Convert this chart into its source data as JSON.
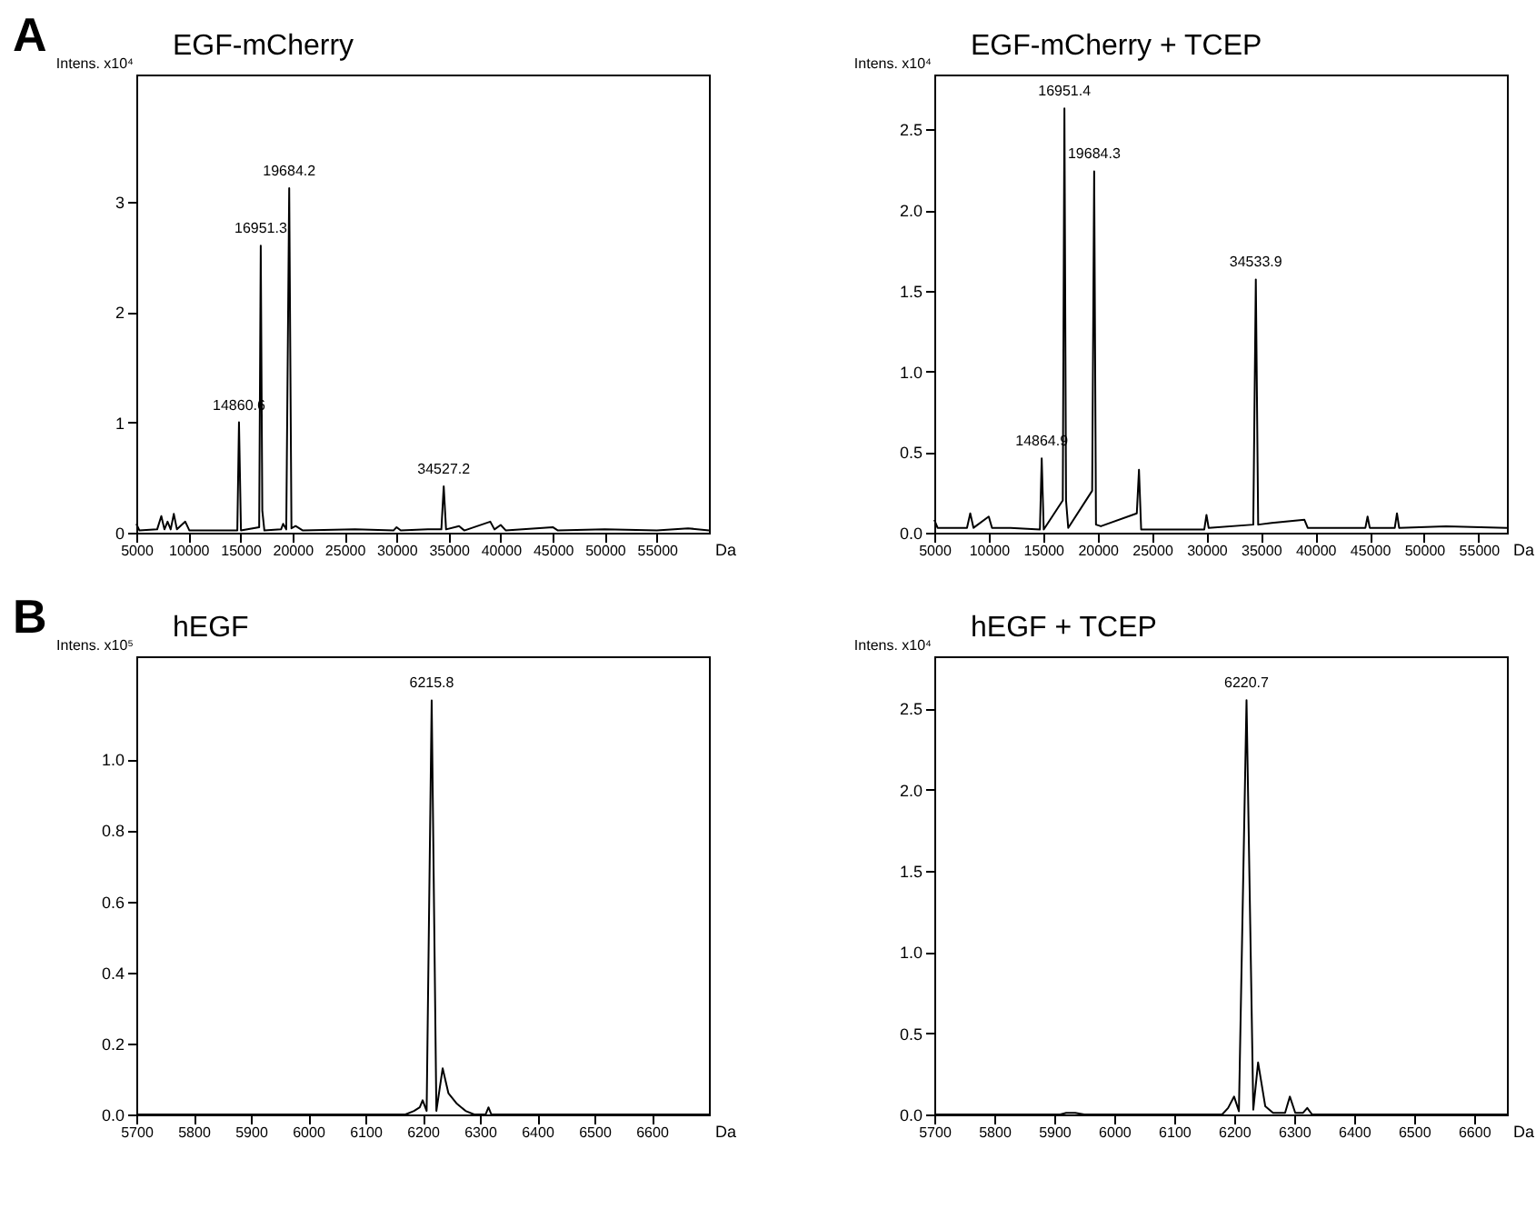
{
  "chart_data": [
    {
      "type": "line",
      "title": "EGF-mCherry",
      "ylabel": "Intens. x10⁴",
      "xlabel": "Da",
      "xlim": [
        5000,
        60000
      ],
      "xticks": [
        5000,
        10000,
        15000,
        20000,
        25000,
        30000,
        35000,
        40000,
        45000,
        50000,
        55000
      ],
      "ylim": [
        0,
        4.15
      ],
      "yticks": [
        0,
        1,
        2,
        3
      ],
      "x": [
        5000,
        5300,
        7000,
        7400,
        7700,
        8000,
        8300,
        8600,
        8900,
        9700,
        10100,
        12000,
        14700,
        14860.6,
        15050,
        16800,
        16951.3,
        17100,
        17300,
        18900,
        19100,
        19400,
        19684.2,
        19900,
        20300,
        21000,
        26000,
        29700,
        30000,
        30400,
        33000,
        34300,
        34527.2,
        34750,
        36000,
        36500,
        39000,
        39400,
        40000,
        40500,
        45000,
        45500,
        50000,
        55000,
        58000,
        60000
      ],
      "series": [
        {
          "color": "#000000",
          "values": [
            0.08,
            0.02,
            0.03,
            0.15,
            0.03,
            0.1,
            0.03,
            0.17,
            0.03,
            0.1,
            0.02,
            0.02,
            0.02,
            1.0,
            0.02,
            0.05,
            2.6,
            0.2,
            0.02,
            0.03,
            0.08,
            0.03,
            3.12,
            0.04,
            0.06,
            0.02,
            0.03,
            0.02,
            0.05,
            0.02,
            0.03,
            0.03,
            0.42,
            0.03,
            0.06,
            0.02,
            0.1,
            0.03,
            0.07,
            0.02,
            0.05,
            0.02,
            0.03,
            0.02,
            0.04,
            0.02
          ]
        }
      ],
      "annotations": [
        "A",
        {
          "text": "14860.6",
          "x": 14860.6,
          "y": 1.0
        },
        {
          "text": "16951.3",
          "x": 16951.3,
          "y": 2.6
        },
        {
          "text": "19684.2",
          "x": 19684.2,
          "y": 3.12
        },
        {
          "text": "34527.2",
          "x": 34527.2,
          "y": 0.42
        }
      ]
    },
    {
      "type": "line",
      "title": "EGF-mCherry + TCEP",
      "ylabel": "Intens. x10⁴",
      "xlabel": "Da",
      "xlim": [
        5000,
        57600
      ],
      "xticks": [
        5000,
        10000,
        15000,
        20000,
        25000,
        30000,
        35000,
        40000,
        45000,
        50000,
        55000
      ],
      "ylim": [
        0,
        2.84
      ],
      "yticks": [
        {
          "value": 0,
          "label": "0.0"
        },
        0.5,
        {
          "value": 1,
          "label": "1.0"
        },
        1.5,
        {
          "value": 2,
          "label": "2.0"
        },
        2.5
      ],
      "x": [
        5000,
        5300,
        8000,
        8300,
        8600,
        10000,
        10300,
        12000,
        14700,
        14864.9,
        15050,
        16800,
        16951.4,
        17100,
        17300,
        19500,
        19684.3,
        19850,
        20300,
        23600,
        23800,
        24000,
        29800,
        30000,
        30200,
        34300,
        34533.9,
        34750,
        36000,
        39000,
        39300,
        44600,
        44800,
        45000,
        47300,
        47500,
        47700,
        52000,
        57600
      ],
      "series": [
        {
          "color": "#000000",
          "values": [
            0.08,
            0.03,
            0.03,
            0.12,
            0.03,
            0.1,
            0.03,
            0.03,
            0.02,
            0.46,
            0.02,
            0.2,
            2.63,
            0.2,
            0.03,
            0.26,
            2.24,
            0.05,
            0.04,
            0.12,
            0.39,
            0.02,
            0.02,
            0.11,
            0.03,
            0.05,
            1.57,
            0.05,
            0.06,
            0.08,
            0.03,
            0.03,
            0.1,
            0.03,
            0.03,
            0.12,
            0.03,
            0.04,
            0.03
          ]
        }
      ],
      "annotations": [
        {
          "text": "14864.9",
          "x": 14864.9,
          "y": 0.46
        },
        {
          "text": "16951.4",
          "x": 16951.4,
          "y": 2.63
        },
        {
          "text": "19684.3",
          "x": 19684.3,
          "y": 2.24
        },
        {
          "text": "34533.9",
          "x": 34533.9,
          "y": 1.57
        }
      ]
    },
    {
      "type": "line",
      "title": "hEGF",
      "ylabel": "Intens. x10⁵",
      "xlabel": "Da",
      "xlim": [
        5700,
        6700
      ],
      "xticks": [
        5700,
        5800,
        5900,
        6000,
        6100,
        6200,
        6300,
        6400,
        6500,
        6600
      ],
      "ylim": [
        0,
        1.29
      ],
      "yticks": [
        {
          "value": 0,
          "label": "0.0"
        },
        0.2,
        0.4,
        0.6,
        0.8,
        {
          "value": 1,
          "label": "1.0"
        }
      ],
      "x": [
        5700,
        6170,
        6185,
        6195,
        6200,
        6207,
        6215.8,
        6224,
        6235,
        6245,
        6260,
        6275,
        6290,
        6310,
        6315,
        6320,
        6700
      ],
      "series": [
        {
          "color": "#000000",
          "values": [
            0,
            0,
            0.01,
            0.02,
            0.04,
            0.01,
            1.166,
            0.01,
            0.13,
            0.06,
            0.03,
            0.01,
            0,
            0,
            0.02,
            0,
            0
          ]
        }
      ],
      "annotations": [
        "B",
        {
          "text": "6215.8",
          "x": 6215.8,
          "y": 1.166
        }
      ]
    },
    {
      "type": "line",
      "title": "hEGF + TCEP",
      "ylabel": "Intens. x10⁴",
      "xlabel": "Da",
      "xlim": [
        5700,
        6655
      ],
      "xticks": [
        5700,
        5800,
        5900,
        6000,
        6100,
        6200,
        6300,
        6400,
        6500,
        6600
      ],
      "ylim": [
        0,
        2.82
      ],
      "yticks": [
        {
          "value": 0,
          "label": "0.0"
        },
        0.5,
        {
          "value": 1,
          "label": "1.0"
        },
        1.5,
        {
          "value": 2,
          "label": "2.0"
        },
        2.5
      ],
      "x": [
        5700,
        5910,
        5920,
        5935,
        5950,
        6180,
        6190,
        6200,
        6208,
        6220.7,
        6232,
        6240,
        6252,
        6265,
        6285,
        6293,
        6302,
        6315,
        6322,
        6330,
        6655
      ],
      "series": [
        {
          "color": "#000000",
          "values": [
            0,
            0,
            0.01,
            0.01,
            0,
            0,
            0.04,
            0.11,
            0.02,
            2.55,
            0.03,
            0.32,
            0.05,
            0.01,
            0.01,
            0.11,
            0.01,
            0.01,
            0.04,
            0,
            0
          ]
        }
      ],
      "annotations": [
        {
          "text": "6220.7",
          "x": 6220.7,
          "y": 2.55
        }
      ]
    }
  ]
}
